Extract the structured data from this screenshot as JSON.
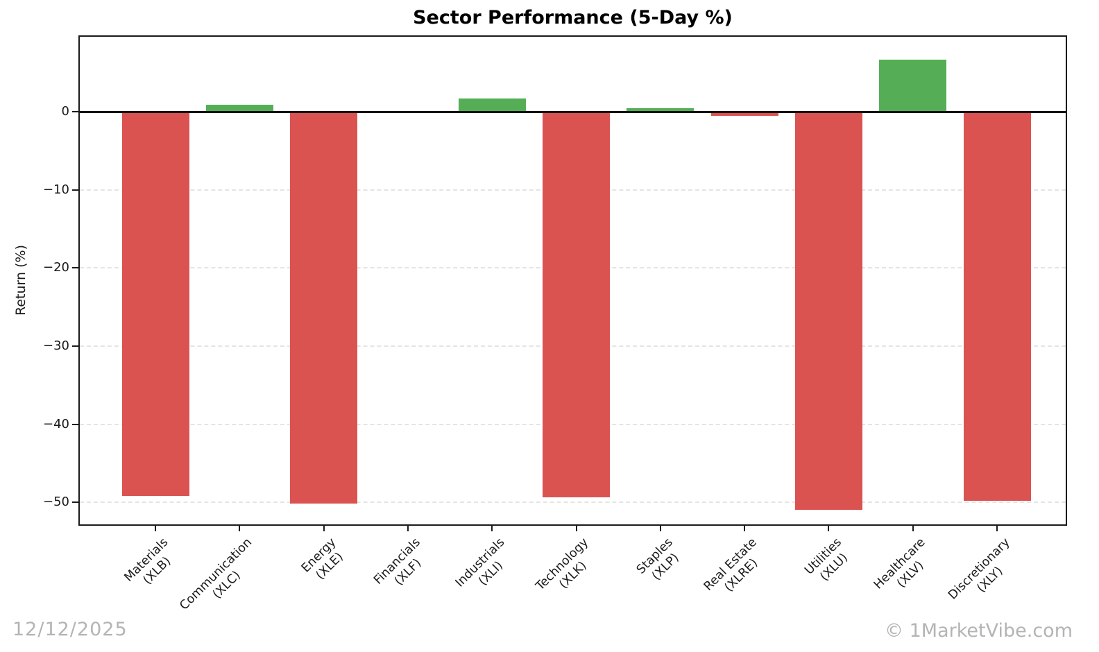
{
  "chart_data": {
    "type": "bar",
    "title": "Sector Performance (5-Day %)",
    "ylabel": "Return (%)",
    "xlabel": "",
    "categories": [
      "Materials",
      "Communication",
      "Energy",
      "Financials",
      "Industrials",
      "Technology",
      "Staples",
      "Real Estate",
      "Utilities",
      "Healthcare",
      "Discretionary"
    ],
    "tickers": [
      "(XLB)",
      "(XLC)",
      "(XLE)",
      "(XLF)",
      "(XLI)",
      "(XLK)",
      "(XLP)",
      "(XLRE)",
      "(XLU)",
      "(XLV)",
      "(XLY)"
    ],
    "values": [
      -49.2,
      0.9,
      -50.1,
      -0.2,
      1.7,
      -49.3,
      0.5,
      -0.5,
      -50.9,
      6.7,
      -49.8
    ],
    "yticks": [
      0,
      -10,
      -20,
      -30,
      -40,
      -50
    ],
    "ytick_labels": [
      "0",
      "−10",
      "−20",
      "−30",
      "−40",
      "−50"
    ],
    "ylim": [
      -52.8,
      9.6
    ],
    "grid": "horizontal-dashed",
    "legend": "none",
    "colors": {
      "positive_bar": "#55ae55",
      "negative_bar": "#da5351",
      "grid": "#e4e4e4",
      "spine": "#1a1a1a",
      "zero_line": "#141414",
      "footer_text": "#b4b4b4"
    }
  },
  "footer": {
    "date": "12/12/2025",
    "credit": "© 1MarketVibe.com"
  }
}
